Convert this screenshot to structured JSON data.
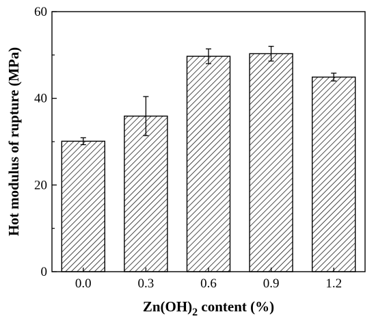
{
  "chart_data": {
    "type": "bar",
    "categories": [
      "0.0",
      "0.3",
      "0.6",
      "0.9",
      "1.2"
    ],
    "values": [
      30.1,
      35.9,
      49.7,
      50.3,
      44.9
    ],
    "errors": [
      0.8,
      4.5,
      1.7,
      1.7,
      0.9
    ],
    "xlabel": {
      "prefix": "Zn(OH)",
      "subscript": "2",
      "suffix": " content (%)"
    },
    "ylabel": "Hot modulus of rupture (MPa)",
    "ylim": [
      0,
      60
    ],
    "yticks": [
      "0",
      "20",
      "40",
      "60"
    ],
    "bar_fill": "hatched",
    "bar_color": "#000000",
    "grid": false,
    "legend": "none"
  }
}
